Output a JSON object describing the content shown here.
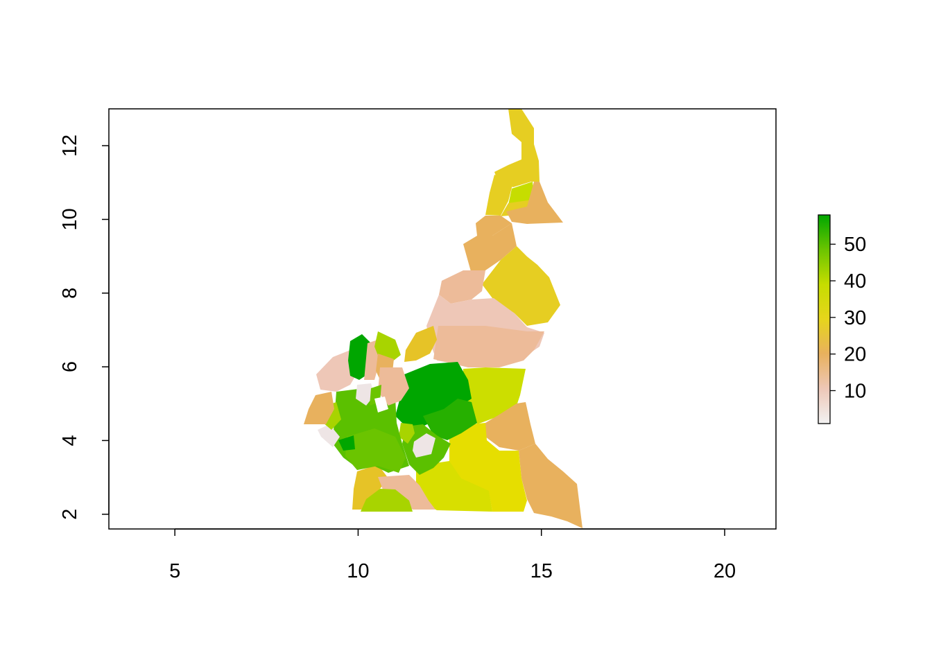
{
  "map": {
    "type": "raster-choropleth",
    "title": "",
    "xlabel": "",
    "ylabel": "",
    "xlim": [
      3.2,
      21.4
    ],
    "ylim": [
      1.6,
      13.0
    ],
    "x_ticks": [
      {
        "value": 5,
        "label": "5"
      },
      {
        "value": 10,
        "label": "10"
      },
      {
        "value": 15,
        "label": "15"
      },
      {
        "value": 20,
        "label": "20"
      }
    ],
    "y_ticks": [
      {
        "value": 2,
        "label": "2"
      },
      {
        "value": 4,
        "label": "4"
      },
      {
        "value": 6,
        "label": "6"
      },
      {
        "value": 8,
        "label": "8"
      },
      {
        "value": 10,
        "label": "10"
      },
      {
        "value": 12,
        "label": "12"
      }
    ]
  },
  "legend": {
    "position": "right",
    "range": [
      1,
      58
    ],
    "ticks": [
      {
        "value": 10,
        "label": "10"
      },
      {
        "value": 20,
        "label": "20"
      },
      {
        "value": 30,
        "label": "30"
      },
      {
        "value": 40,
        "label": "40"
      },
      {
        "value": 50,
        "label": "50"
      }
    ],
    "gradient_colors": [
      "#F2F2F2",
      "#EEC7B7",
      "#E8B15E",
      "#E6D51C",
      "#C6DD00",
      "#6BC400",
      "#00A600"
    ]
  },
  "colors": {
    "frame": "#000000",
    "background": "#FFFFFF"
  }
}
